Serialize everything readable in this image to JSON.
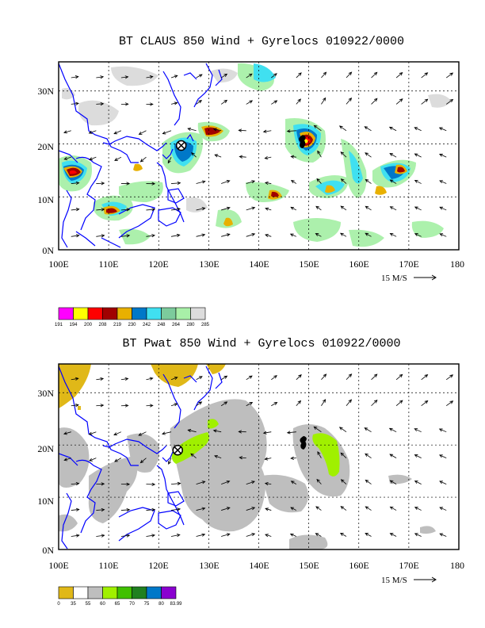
{
  "maps": [
    {
      "title": "BT CLAUS 850 Wind + Gyrelocs 010922/0000",
      "field": "CLAUS brightness temperature",
      "lon_labels": [
        "100E",
        "110E",
        "120E",
        "130E",
        "140E",
        "150E",
        "160E",
        "170E",
        "180"
      ],
      "lat_labels": [
        "0N",
        "10N",
        "20N",
        "30N"
      ],
      "wind_scale_label": "15 M/S",
      "legend": {
        "labels": [
          "191",
          "194",
          "200",
          "208",
          "219",
          "230",
          "242",
          "248",
          "264",
          "280",
          "285"
        ],
        "colors": [
          "#ff00ff",
          "#ffff00",
          "#ff0000",
          "#a00000",
          "#e8b000",
          "#0078c8",
          "#40e0f0",
          "#7ccb9c",
          "#a8f0a8",
          "#dcdcdc"
        ]
      },
      "gyrelocs": [
        {
          "lon": 124.5,
          "lat": 19.7
        }
      ],
      "storm_centers": [
        {
          "lon": 148.8,
          "lat": 20.5
        }
      ]
    },
    {
      "title": "BT Pwat 850 Wind + Gyrelocs 010922/0000",
      "field": "Precipitable water",
      "lon_labels": [
        "100E",
        "110E",
        "120E",
        "130E",
        "140E",
        "150E",
        "160E",
        "170E",
        "180"
      ],
      "lat_labels": [
        "0N",
        "10N",
        "20N",
        "30N"
      ],
      "wind_scale_label": "15 M/S",
      "legend": {
        "labels": [
          "0",
          "35",
          "55",
          "60",
          "65",
          "70",
          "75",
          "80",
          "83.99"
        ],
        "colors": [
          "#e0b818",
          "#ffffff",
          "#bebebe",
          "#a0f000",
          "#40c000",
          "#208020",
          "#0078c8",
          "#8a00d0"
        ]
      },
      "gyrelocs": [
        {
          "lon": 123.8,
          "lat": 19.0
        }
      ],
      "storm_centers": [
        {
          "lon": 149.0,
          "lat": 20.5
        }
      ]
    }
  ]
}
